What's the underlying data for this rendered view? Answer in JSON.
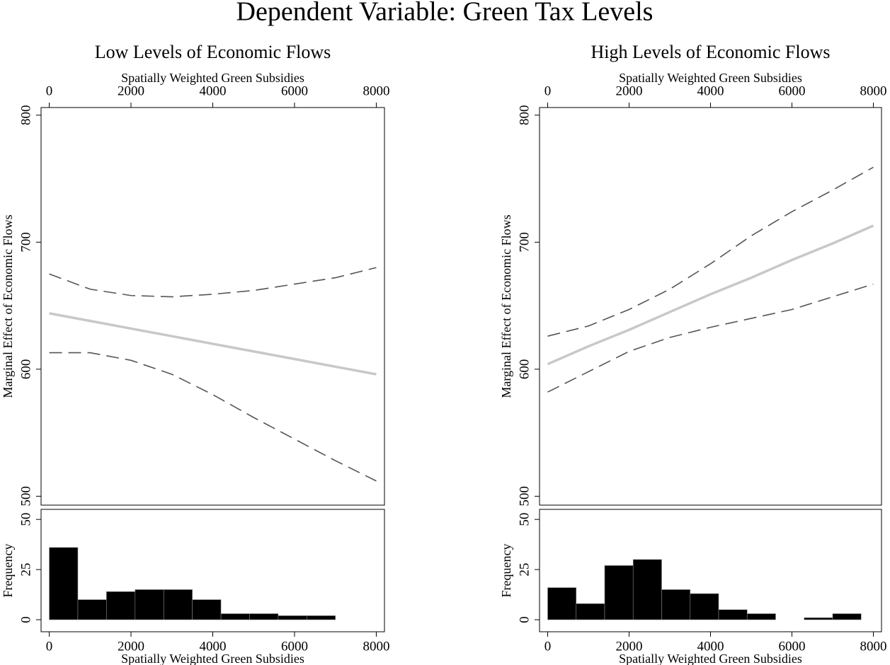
{
  "title": "Dependent Variable: Green Tax Levels",
  "chart_data": [
    {
      "type": "line",
      "title": "Low Levels of Economic Flows",
      "xlabel": "Spatially Weighted Green Subsidies",
      "ylabel": "Marginal Effect of Economic Flows",
      "x": [
        0,
        1000,
        2000,
        3000,
        4000,
        5000,
        6000,
        7000,
        8000
      ],
      "series": [
        {
          "color": "#555555",
          "style": "dashed",
          "values": [
            675,
            663,
            658,
            657,
            659,
            662,
            667,
            672,
            680
          ]
        },
        {
          "color": "#c8c8c8",
          "style": "solid",
          "values": [
            644,
            638,
            632,
            626,
            620,
            614,
            608,
            602,
            596
          ]
        },
        {
          "color": "#555555",
          "style": "dashed",
          "values": [
            613,
            613,
            607,
            596,
            580,
            562,
            545,
            528,
            512
          ]
        }
      ],
      "xlim": [
        -200,
        8200
      ],
      "ylim": [
        493,
        806
      ],
      "xticks": [
        0,
        2000,
        4000,
        6000,
        8000
      ],
      "yticks": [
        500,
        600,
        700,
        800
      ]
    },
    {
      "type": "histogram",
      "xlabel": "Spatially Weighted Green Subsidies",
      "ylabel": "Frequency",
      "color": "#000000",
      "bins": [
        0,
        700,
        1400,
        2100,
        2800,
        3500,
        4200,
        4900,
        5600,
        6300,
        7000
      ],
      "values": [
        36,
        10,
        14,
        15,
        15,
        10,
        3,
        3,
        2,
        2
      ],
      "xlim": [
        -200,
        8200
      ],
      "ylim": [
        -6,
        55
      ],
      "xticks": [
        0,
        2000,
        4000,
        6000,
        8000
      ],
      "yticks": [
        0,
        25,
        50
      ]
    },
    {
      "type": "line",
      "title": "High Levels of Economic Flows",
      "xlabel": "Spatially Weighted Green Subsidies",
      "ylabel": "Marginal Effect of Economic Flows",
      "x": [
        0,
        1000,
        2000,
        3000,
        4000,
        5000,
        6000,
        7000,
        8000
      ],
      "series": [
        {
          "color": "#555555",
          "style": "dashed",
          "values": [
            626,
            634,
            647,
            663,
            683,
            705,
            724,
            741,
            759
          ]
        },
        {
          "color": "#c8c8c8",
          "style": "solid",
          "values": [
            604,
            618,
            631,
            645,
            659,
            672,
            686,
            699,
            713
          ]
        },
        {
          "color": "#555555",
          "style": "dashed",
          "values": [
            582,
            598,
            614,
            625,
            633,
            640,
            647,
            657,
            667
          ]
        }
      ],
      "xlim": [
        -200,
        8200
      ],
      "ylim": [
        493,
        806
      ],
      "xticks": [
        0,
        2000,
        4000,
        6000,
        8000
      ],
      "yticks": [
        500,
        600,
        700,
        800
      ]
    },
    {
      "type": "histogram",
      "xlabel": "Spatially Weighted Green Subsidies",
      "ylabel": "Frequency",
      "color": "#000000",
      "bins": [
        0,
        700,
        1400,
        2100,
        2800,
        3500,
        4200,
        4900,
        5600,
        6300,
        7000,
        7700
      ],
      "values": [
        16,
        8,
        27,
        30,
        15,
        13,
        5,
        3,
        0,
        1,
        3
      ],
      "xlim": [
        -200,
        8200
      ],
      "ylim": [
        -6,
        55
      ],
      "xticks": [
        0,
        2000,
        4000,
        6000,
        8000
      ],
      "yticks": [
        0,
        25,
        50
      ]
    }
  ]
}
